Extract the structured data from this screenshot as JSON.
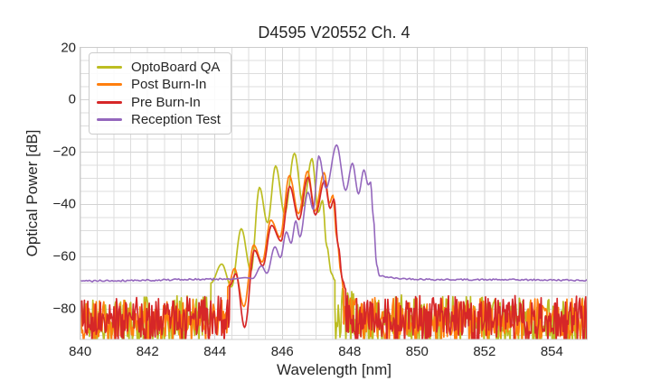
{
  "chart_data": {
    "type": "line",
    "title": "D4595 V20552 Ch. 4",
    "xlabel": "Wavelength [nm]",
    "ylabel": "Optical Power [dB]",
    "xlim": [
      840,
      855.05
    ],
    "ylim": [
      -91.6,
      20
    ],
    "xticks": [
      {
        "v": 840,
        "label": "840"
      },
      {
        "v": 842,
        "label": "842"
      },
      {
        "v": 844,
        "label": "844"
      },
      {
        "v": 846,
        "label": "846"
      },
      {
        "v": 848,
        "label": "848"
      },
      {
        "v": 850,
        "label": "850"
      },
      {
        "v": 852,
        "label": "852"
      },
      {
        "v": 854,
        "label": "854"
      }
    ],
    "yticks": [
      {
        "v": 20,
        "label": "20"
      },
      {
        "v": 0,
        "label": "0"
      },
      {
        "v": -20,
        "label": "−20"
      },
      {
        "v": -40,
        "label": "−40"
      },
      {
        "v": -60,
        "label": "−60"
      },
      {
        "v": -80,
        "label": "−80"
      }
    ],
    "minor_x_step": 0.5,
    "minor_y_step": 5,
    "grid": "both-major-and-minor, light gray on white (seaborn whitegrid)",
    "legend_position": "upper left",
    "series": [
      {
        "name": "OptoBoard QA",
        "color": "#bcbd22",
        "linewidth": 1.7,
        "segments": [
          {
            "kind": "noise",
            "pitch": 0.025,
            "reach_db": -90.5,
            "seed": 11,
            "points": [
              [
                840,
                -73.5
              ],
              [
                841.4,
                -73.2
              ],
              [
                841.9,
                -71.6
              ],
              [
                842.4,
                -72.6
              ],
              [
                843.0,
                -72.3
              ],
              [
                843.45,
                -70.8
              ],
              [
                843.88,
                -70.0
              ]
            ]
          },
          {
            "kind": "smooth",
            "points": [
              [
                843.88,
                -70.0
              ],
              [
                844.2,
                -62.8
              ],
              [
                844.49,
                -71.5
              ],
              [
                844.78,
                -49.3
              ],
              [
                845.07,
                -65.5
              ],
              [
                845.32,
                -33.5
              ],
              [
                845.56,
                -47.0
              ],
              [
                845.8,
                -25.3
              ],
              [
                846.07,
                -43.5
              ],
              [
                846.36,
                -20.5
              ],
              [
                846.62,
                -40.5
              ],
              [
                846.88,
                -22.5
              ],
              [
                847.07,
                -43.0
              ],
              [
                847.19,
                -38.5
              ],
              [
                847.32,
                -56.0
              ],
              [
                847.46,
                -66.5
              ],
              [
                847.56,
                -69.0
              ]
            ]
          },
          {
            "kind": "noise",
            "pitch": 0.025,
            "reach_db": -90.5,
            "seed": 12,
            "points": [
              [
                847.56,
                -69.0
              ],
              [
                847.8,
                -67.3
              ],
              [
                848.1,
                -70.5
              ],
              [
                848.4,
                -72.3
              ],
              [
                849.5,
                -72.6
              ],
              [
                852.0,
                -72.4
              ],
              [
                855.05,
                -72.6
              ]
            ]
          }
        ]
      },
      {
        "name": "Post Burn-In",
        "color": "#ff7f0e",
        "linewidth": 1.7,
        "segments": [
          {
            "kind": "noise",
            "pitch": 0.025,
            "reach_db": -90.5,
            "seed": 21,
            "points": [
              [
                840,
                -74.2
              ],
              [
                842.0,
                -74.0
              ],
              [
                843.2,
                -73.8
              ],
              [
                844.0,
                -72.6
              ],
              [
                844.38,
                -71.5
              ]
            ]
          },
          {
            "kind": "smooth",
            "points": [
              [
                844.38,
                -71.5
              ],
              [
                844.58,
                -64.5
              ],
              [
                844.86,
                -79.0
              ],
              [
                845.15,
                -55.5
              ],
              [
                845.4,
                -62.0
              ],
              [
                845.66,
                -46.0
              ],
              [
                845.93,
                -52.5
              ],
              [
                846.21,
                -29.0
              ],
              [
                846.48,
                -43.5
              ],
              [
                846.75,
                -27.3
              ],
              [
                846.97,
                -42.5
              ],
              [
                847.24,
                -27.9
              ],
              [
                847.4,
                -39.5
              ],
              [
                847.5,
                -36.5
              ],
              [
                847.62,
                -53.0
              ],
              [
                847.74,
                -66.0
              ],
              [
                847.82,
                -73.0
              ]
            ]
          },
          {
            "kind": "noise",
            "pitch": 0.025,
            "reach_db": -90.5,
            "seed": 22,
            "points": [
              [
                847.82,
                -73.0
              ],
              [
                849.0,
                -73.3
              ],
              [
                851.0,
                -73.0
              ],
              [
                853.0,
                -73.4
              ],
              [
                855.05,
                -73.2
              ]
            ]
          }
        ]
      },
      {
        "name": "Pre Burn-In",
        "color": "#d62728",
        "linewidth": 1.7,
        "segments": [
          {
            "kind": "noise",
            "pitch": 0.025,
            "reach_db": -90.5,
            "seed": 31,
            "points": [
              [
                840,
                -73.8
              ],
              [
                841.5,
                -73.6
              ],
              [
                842.5,
                -73.9
              ],
              [
                843.5,
                -73.4
              ],
              [
                844.1,
                -72.2
              ],
              [
                844.44,
                -71.0
              ]
            ]
          },
          {
            "kind": "smooth",
            "points": [
              [
                844.44,
                -71.0
              ],
              [
                844.62,
                -66.5
              ],
              [
                844.88,
                -87.0
              ],
              [
                845.17,
                -57.5
              ],
              [
                845.42,
                -63.5
              ],
              [
                845.68,
                -48.0
              ],
              [
                845.96,
                -54.0
              ],
              [
                846.22,
                -33.1
              ],
              [
                846.49,
                -45.8
              ],
              [
                846.76,
                -29.6
              ],
              [
                846.98,
                -44.0
              ],
              [
                847.25,
                -31.0
              ],
              [
                847.42,
                -41.5
              ],
              [
                847.53,
                -38.0
              ],
              [
                847.66,
                -56.0
              ],
              [
                847.79,
                -69.0
              ],
              [
                847.88,
                -72.5
              ]
            ]
          },
          {
            "kind": "noise",
            "pitch": 0.025,
            "reach_db": -90.5,
            "seed": 32,
            "points": [
              [
                847.88,
                -72.5
              ],
              [
                849.5,
                -72.6
              ],
              [
                851.5,
                -72.2
              ],
              [
                853.5,
                -72.6
              ],
              [
                855.05,
                -72.4
              ]
            ]
          }
        ]
      },
      {
        "name": "Reception Test",
        "color": "#9467bd",
        "linewidth": 1.6,
        "segments": [
          {
            "kind": "jitter",
            "pitch": 0.045,
            "amp": 0.35,
            "seed": 41,
            "points": [
              [
                840,
                -69.3
              ],
              [
                841.5,
                -69.05
              ],
              [
                843.0,
                -68.75
              ],
              [
                844.55,
                -68.45
              ]
            ]
          },
          {
            "kind": "smooth",
            "points": [
              [
                844.55,
                -68.45
              ],
              [
                844.9,
                -68.0
              ],
              [
                845.12,
                -68.3
              ],
              [
                845.38,
                -63.5
              ],
              [
                845.54,
                -66.3
              ],
              [
                845.78,
                -56.2
              ],
              [
                845.94,
                -60.3
              ],
              [
                846.12,
                -50.5
              ],
              [
                846.26,
                -54.8
              ],
              [
                846.4,
                -46.3
              ],
              [
                846.52,
                -52.4
              ],
              [
                846.76,
                -35.4
              ],
              [
                846.92,
                -42.0
              ],
              [
                847.08,
                -21.5
              ],
              [
                847.3,
                -33.8
              ],
              [
                847.61,
                -17.3
              ],
              [
                847.88,
                -34.6
              ],
              [
                848.08,
                -24.3
              ],
              [
                848.26,
                -36.0
              ],
              [
                848.42,
                -26.8
              ],
              [
                848.55,
                -32.5
              ],
              [
                848.62,
                -31.5
              ],
              [
                848.7,
                -45.0
              ],
              [
                848.8,
                -63.0
              ],
              [
                848.88,
                -67.3
              ]
            ]
          },
          {
            "kind": "jitter",
            "pitch": 0.045,
            "amp": 0.3,
            "seed": 42,
            "points": [
              [
                848.88,
                -67.3
              ],
              [
                849.4,
                -68.3
              ],
              [
                850.5,
                -68.7
              ],
              [
                853.0,
                -68.8
              ],
              [
                855.05,
                -69.0
              ]
            ]
          }
        ]
      }
    ],
    "colors": {
      "grid_major": "#d3d3d3",
      "grid_minor": "#dddddd",
      "spine": "#cccccc",
      "text": "#262626",
      "background": "#ffffff"
    }
  },
  "legend": {
    "items": [
      {
        "label": "OptoBoard QA",
        "color": "#bcbd22"
      },
      {
        "label": "Post Burn-In",
        "color": "#ff7f0e"
      },
      {
        "label": "Pre Burn-In",
        "color": "#d62728"
      },
      {
        "label": "Reception Test",
        "color": "#9467bd"
      }
    ]
  }
}
